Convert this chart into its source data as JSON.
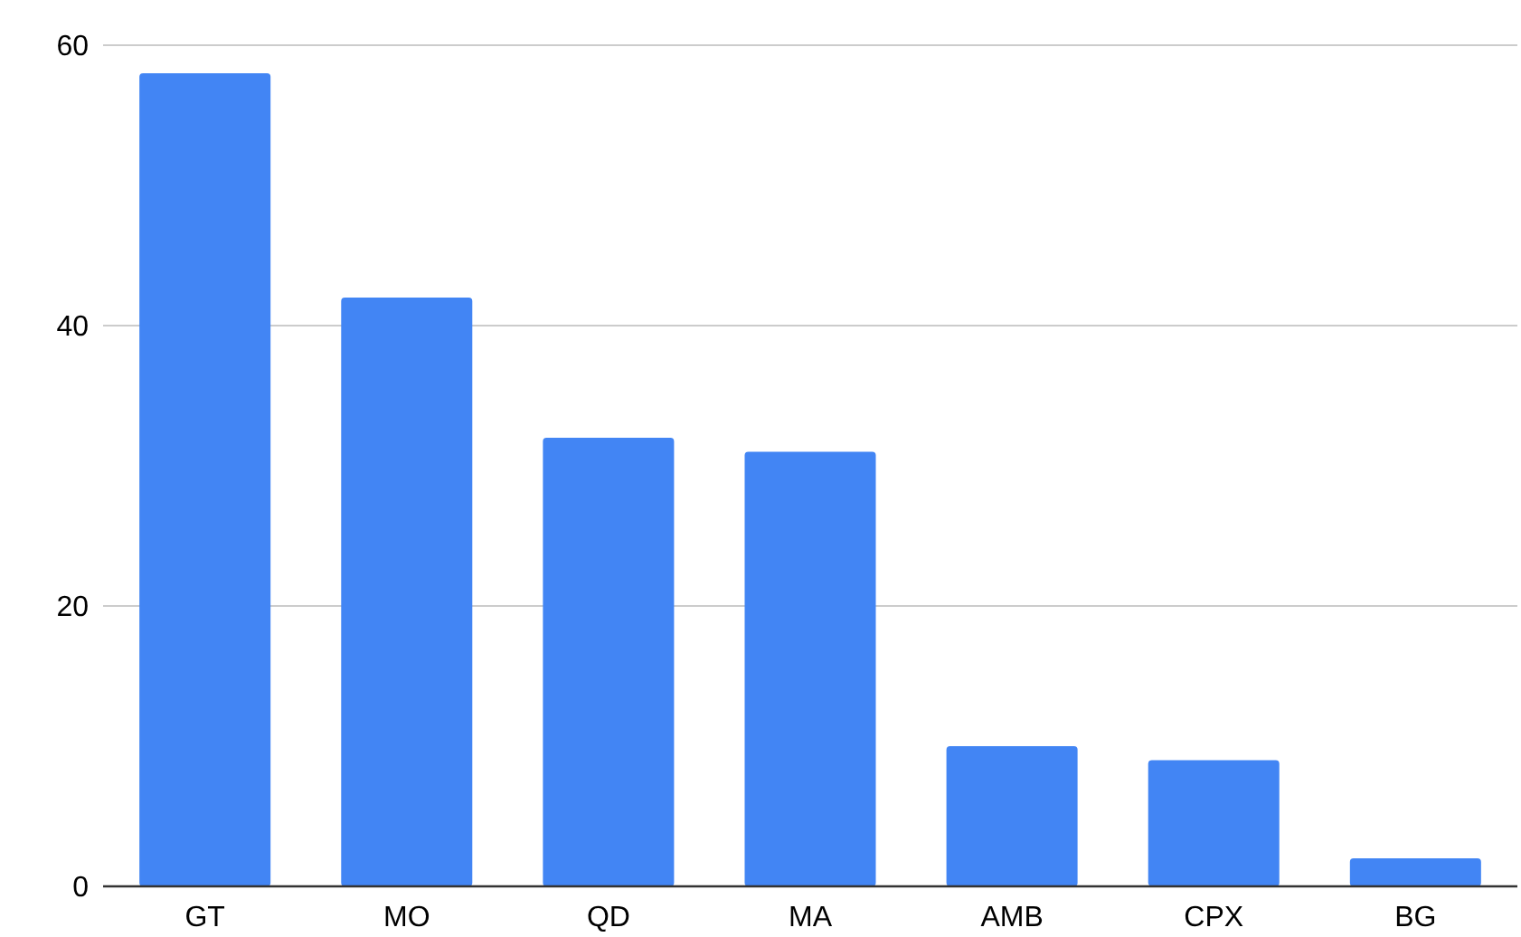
{
  "chart_data": {
    "type": "bar",
    "categories": [
      "GT",
      "MO",
      "QD",
      "MA",
      "AMB",
      "CPX",
      "BG"
    ],
    "values": [
      58,
      42,
      32,
      31,
      10,
      9,
      2
    ],
    "color": "#4285f4",
    "ylim": [
      0,
      60
    ],
    "yticks": [
      0,
      20,
      40,
      60
    ],
    "grid": "y"
  }
}
